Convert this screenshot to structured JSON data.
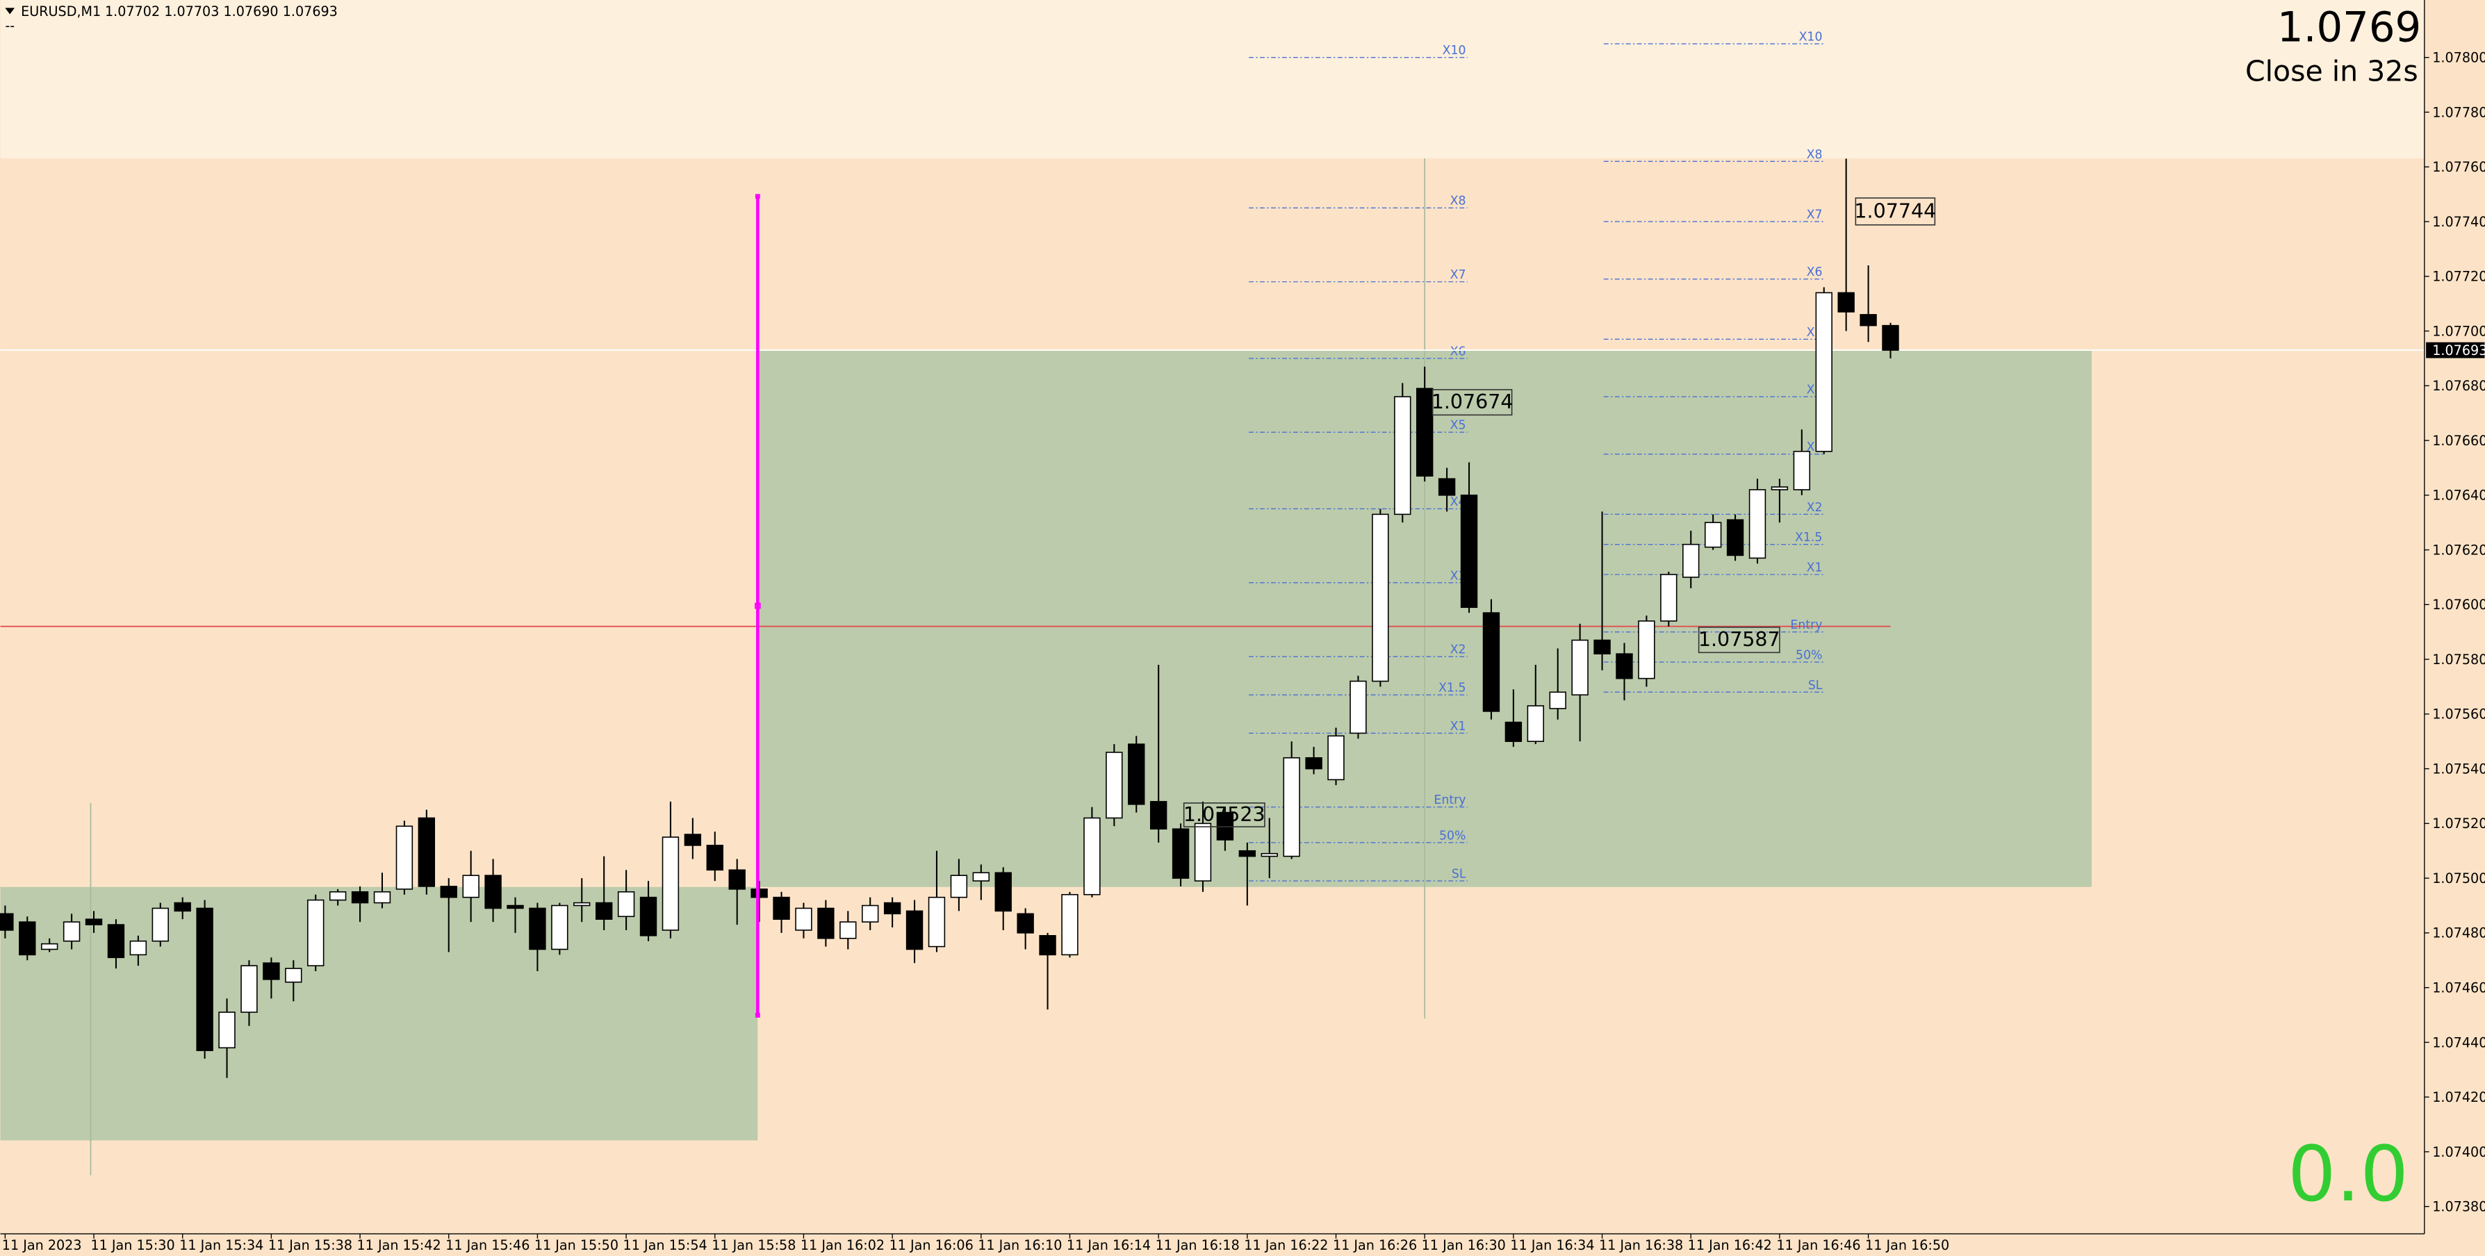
{
  "header": {
    "symbol": "EURUSD,M1",
    "quote": "1.07702 1.07703 1.07690 1.07693",
    "sub": "--"
  },
  "overlay": {
    "price": "1.0769",
    "countdown": "Close in 32s",
    "counter": "0.0"
  },
  "chart_data": {
    "type": "candlestick",
    "bull_color": "#ffffff",
    "bear_color": "#000000",
    "outline_color": "#000000",
    "open": [
      1.07487,
      1.07484,
      1.07474,
      1.07477,
      1.07485,
      1.07483,
      1.07472,
      1.07477,
      1.07491,
      1.07489,
      1.07438,
      1.07451,
      1.07469,
      1.07462,
      1.07468,
      1.07492,
      1.07495,
      1.07491,
      1.07496,
      1.07522,
      1.07497,
      1.07493,
      1.07501,
      1.0749,
      1.07489,
      1.07474,
      1.0749,
      1.07491,
      1.07486,
      1.07493,
      1.07481,
      1.07516,
      1.07512,
      1.07503,
      1.07496,
      1.07493,
      1.07481,
      1.07489,
      1.07478,
      1.07484,
      1.07491,
      1.07488,
      1.07475,
      1.07493,
      1.07499,
      1.07502,
      1.07487,
      1.07479,
      1.07472,
      1.07494,
      1.07522,
      1.07549,
      1.07528,
      1.07518,
      1.07499,
      1.07524,
      1.0751,
      1.07508,
      1.07508,
      1.07544,
      1.07536,
      1.07553,
      1.07572,
      1.07633,
      1.07679,
      1.07646,
      1.0764,
      1.07597,
      1.07557,
      1.0755,
      1.07562,
      1.07567,
      1.07587,
      1.07582,
      1.07573,
      1.07594,
      1.0761,
      1.07621,
      1.07631,
      1.07617,
      1.07642,
      1.07642,
      1.07656,
      1.07714,
      1.07706,
      1.07702
    ],
    "high": [
      1.0749,
      1.07486,
      1.07478,
      1.07487,
      1.07488,
      1.07485,
      1.07479,
      1.07491,
      1.07493,
      1.07492,
      1.07456,
      1.0747,
      1.07471,
      1.0747,
      1.07494,
      1.07496,
      1.07497,
      1.07502,
      1.07521,
      1.07525,
      1.075,
      1.0751,
      1.07507,
      1.07493,
      1.07491,
      1.07491,
      1.075,
      1.07508,
      1.07503,
      1.07499,
      1.07528,
      1.07522,
      1.07517,
      1.07507,
      1.07499,
      1.07495,
      1.07491,
      1.07492,
      1.07488,
      1.07493,
      1.07493,
      1.07492,
      1.0751,
      1.07507,
      1.07505,
      1.07504,
      1.07489,
      1.0748,
      1.07495,
      1.07526,
      1.07549,
      1.07552,
      1.07578,
      1.0752,
      1.07528,
      1.07526,
      1.07513,
      1.07522,
      1.0755,
      1.07548,
      1.07555,
      1.07574,
      1.07635,
      1.07681,
      1.07687,
      1.0765,
      1.07652,
      1.07602,
      1.07569,
      1.07578,
      1.07584,
      1.07593,
      1.07634,
      1.07586,
      1.07596,
      1.07612,
      1.07627,
      1.07633,
      1.07633,
      1.07646,
      1.07646,
      1.07664,
      1.07716,
      1.07763,
      1.07724,
      1.07703
    ],
    "low": [
      1.07478,
      1.0747,
      1.07473,
      1.07474,
      1.0748,
      1.07467,
      1.07468,
      1.07475,
      1.07485,
      1.07434,
      1.07427,
      1.07446,
      1.07456,
      1.07455,
      1.07466,
      1.0749,
      1.07484,
      1.07489,
      1.07494,
      1.07494,
      1.07473,
      1.07484,
      1.07484,
      1.0748,
      1.07466,
      1.07472,
      1.07484,
      1.07481,
      1.07481,
      1.07477,
      1.07478,
      1.07507,
      1.07499,
      1.07483,
      1.07484,
      1.0748,
      1.07478,
      1.07475,
      1.07474,
      1.07481,
      1.07482,
      1.07469,
      1.07473,
      1.07488,
      1.07492,
      1.07481,
      1.07474,
      1.07452,
      1.07471,
      1.07493,
      1.07519,
      1.07524,
      1.07513,
      1.07497,
      1.07495,
      1.0751,
      1.0749,
      1.075,
      1.07507,
      1.07538,
      1.07534,
      1.07551,
      1.0757,
      1.0763,
      1.07645,
      1.07634,
      1.07597,
      1.07558,
      1.07548,
      1.07549,
      1.07558,
      1.0755,
      1.07576,
      1.07565,
      1.0757,
      1.07592,
      1.07606,
      1.0762,
      1.07616,
      1.07615,
      1.0763,
      1.0764,
      1.07655,
      1.077,
      1.07696,
      1.0769
    ],
    "close": [
      1.07481,
      1.07472,
      1.07476,
      1.07484,
      1.07483,
      1.07471,
      1.07477,
      1.07489,
      1.07488,
      1.07437,
      1.07451,
      1.07468,
      1.07463,
      1.07467,
      1.07492,
      1.07495,
      1.07491,
      1.07495,
      1.07519,
      1.07497,
      1.07493,
      1.07501,
      1.07489,
      1.07489,
      1.07474,
      1.0749,
      1.07491,
      1.07485,
      1.07495,
      1.07479,
      1.07515,
      1.07512,
      1.07503,
      1.07496,
      1.07493,
      1.07485,
      1.07489,
      1.07478,
      1.07484,
      1.0749,
      1.07487,
      1.07474,
      1.07493,
      1.07501,
      1.07502,
      1.07488,
      1.0748,
      1.07472,
      1.07494,
      1.07522,
      1.07546,
      1.07527,
      1.07518,
      1.075,
      1.0752,
      1.07514,
      1.07508,
      1.07509,
      1.07544,
      1.0754,
      1.07552,
      1.07572,
      1.07633,
      1.07676,
      1.07647,
      1.0764,
      1.07599,
      1.07561,
      1.0755,
      1.07563,
      1.07568,
      1.07587,
      1.07582,
      1.07573,
      1.07594,
      1.07611,
      1.07622,
      1.0763,
      1.07618,
      1.07642,
      1.07643,
      1.07656,
      1.07714,
      1.07707,
      1.07702,
      1.07693
    ],
    "ylim": [
      1.0737,
      1.07821
    ],
    "yticks": [
      {
        "value": 1.078,
        "label": "1.07800"
      },
      {
        "value": 1.0778,
        "label": "1.07780"
      },
      {
        "value": 1.0776,
        "label": "1.07760"
      },
      {
        "value": 1.0774,
        "label": "1.07740"
      },
      {
        "value": 1.0772,
        "label": "1.07720"
      },
      {
        "value": 1.077,
        "label": "1.07700"
      },
      {
        "value": 1.0768,
        "label": "1.07680"
      },
      {
        "value": 1.0766,
        "label": "1.07660"
      },
      {
        "value": 1.0764,
        "label": "1.07640"
      },
      {
        "value": 1.0762,
        "label": "1.07620"
      },
      {
        "value": 1.076,
        "label": "1.07600"
      },
      {
        "value": 1.0758,
        "label": "1.07580"
      },
      {
        "value": 1.0756,
        "label": "1.07560"
      },
      {
        "value": 1.0754,
        "label": "1.07540"
      },
      {
        "value": 1.0752,
        "label": "1.07520"
      },
      {
        "value": 1.075,
        "label": "1.07500"
      },
      {
        "value": 1.0748,
        "label": "1.07480"
      },
      {
        "value": 1.0746,
        "label": "1.07460"
      },
      {
        "value": 1.0744,
        "label": "1.07440"
      },
      {
        "value": 1.0742,
        "label": "1.07420"
      },
      {
        "value": 1.074,
        "label": "1.07400"
      },
      {
        "value": 1.0738,
        "label": "1.07380"
      }
    ],
    "xticks": [
      {
        "value": 0,
        "label": "11 Jan 2023"
      },
      {
        "value": 4,
        "label": "11 Jan 15:30"
      },
      {
        "value": 8,
        "label": "11 Jan 15:34"
      },
      {
        "value": 12,
        "label": "11 Jan 15:38"
      },
      {
        "value": 16,
        "label": "11 Jan 15:42"
      },
      {
        "value": 20,
        "label": "11 Jan 15:46"
      },
      {
        "value": 24,
        "label": "11 Jan 15:50"
      },
      {
        "value": 28,
        "label": "11 Jan 15:54"
      },
      {
        "value": 32,
        "label": "11 Jan 15:58"
      },
      {
        "value": 36,
        "label": "11 Jan 16:02"
      },
      {
        "value": 40,
        "label": "11 Jan 16:06"
      },
      {
        "value": 44,
        "label": "11 Jan 16:10"
      },
      {
        "value": 48,
        "label": "11 Jan 16:14"
      },
      {
        "value": 52,
        "label": "11 Jan 16:18"
      },
      {
        "value": 56,
        "label": "11 Jan 16:22"
      },
      {
        "value": 60,
        "label": "11 Jan 16:26"
      },
      {
        "value": 64,
        "label": "11 Jan 16:30"
      },
      {
        "value": 68,
        "label": "11 Jan 16:34"
      },
      {
        "value": 72,
        "label": "11 Jan 16:38"
      },
      {
        "value": 76,
        "label": "11 Jan 16:42"
      },
      {
        "value": 80,
        "label": "11 Jan 16:46"
      },
      {
        "value": 84,
        "label": "11 Jan 16:50"
      }
    ],
    "last_price": {
      "value": 1.07693,
      "label": "1.07693"
    },
    "level_color": "#4a6fd6",
    "level_sets": [
      {
        "levels": [
          {
            "label": "X10",
            "value": 1.078
          },
          {
            "label": "X8",
            "value": 1.07745
          },
          {
            "label": "X7",
            "value": 1.07718
          },
          {
            "label": "X6",
            "value": 1.0769
          },
          {
            "label": "X5",
            "value": 1.07663
          },
          {
            "label": "X4",
            "value": 1.07635
          },
          {
            "label": "X3",
            "value": 1.07608
          },
          {
            "label": "X2",
            "value": 1.07581
          },
          {
            "label": "X1.5",
            "value": 1.07567
          },
          {
            "label": "X1",
            "value": 1.07553
          },
          {
            "label": "Entry",
            "value": 1.07526
          },
          {
            "label": "50%",
            "value": 1.07513
          },
          {
            "label": "SL",
            "value": 1.07499
          }
        ]
      },
      {
        "levels": [
          {
            "label": "X10",
            "value": 1.07805
          },
          {
            "label": "X8",
            "value": 1.07762
          },
          {
            "label": "X7",
            "value": 1.0774
          },
          {
            "label": "X6",
            "value": 1.07719
          },
          {
            "label": "X5",
            "value": 1.07697
          },
          {
            "label": "X4",
            "value": 1.07676
          },
          {
            "label": "X3",
            "value": 1.07655
          },
          {
            "label": "X2",
            "value": 1.07633
          },
          {
            "label": "X1.5",
            "value": 1.07622
          },
          {
            "label": "X1",
            "value": 1.07611
          },
          {
            "label": "Entry",
            "value": 1.0759
          },
          {
            "label": "50%",
            "value": 1.07579
          },
          {
            "label": "SL",
            "value": 1.07568
          }
        ]
      }
    ],
    "annotations": [
      "1.07523",
      "1.07674",
      "1.07587",
      "1.07744"
    ]
  }
}
